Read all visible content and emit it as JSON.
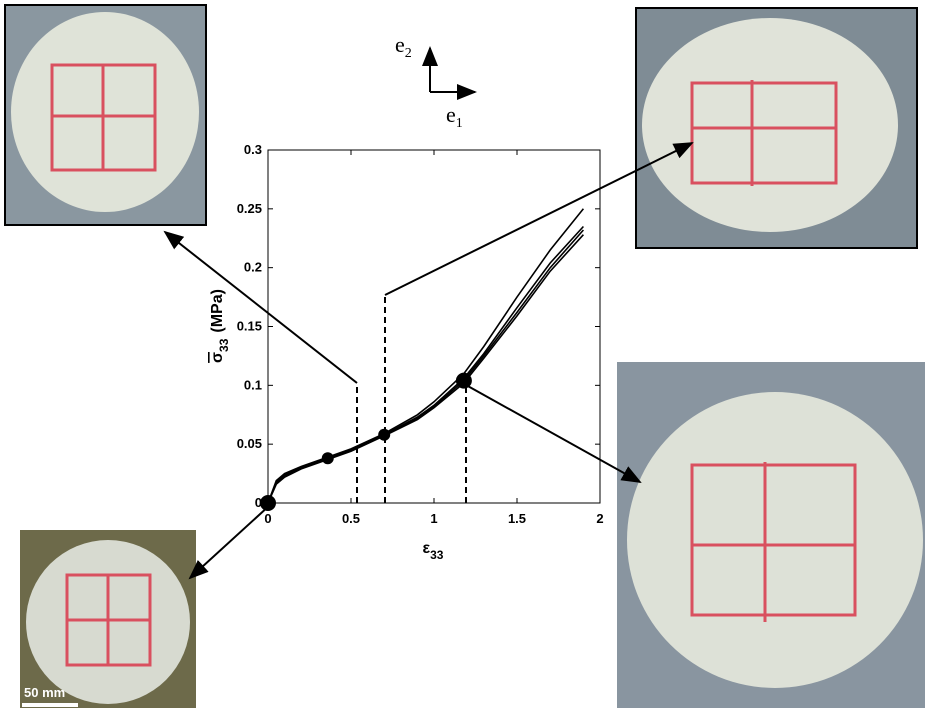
{
  "chart_data": {
    "type": "line",
    "x": [
      0,
      0.05,
      0.1,
      0.2,
      0.36,
      0.5,
      0.7,
      0.9,
      1.0,
      1.18,
      1.3,
      1.5,
      1.7,
      1.9
    ],
    "series": [
      {
        "color": "#000000",
        "values": [
          0,
          0.019,
          0.025,
          0.031,
          0.039,
          0.046,
          0.059,
          0.075,
          0.086,
          0.11,
          0.133,
          0.175,
          0.215,
          0.25
        ]
      },
      {
        "color": "#000000",
        "values": [
          0,
          0.018,
          0.024,
          0.03,
          0.038,
          0.045,
          0.058,
          0.073,
          0.083,
          0.106,
          0.127,
          0.166,
          0.204,
          0.235
        ]
      },
      {
        "color": "#000000",
        "values": [
          0,
          0.017,
          0.023,
          0.03,
          0.038,
          0.045,
          0.058,
          0.072,
          0.082,
          0.104,
          0.125,
          0.162,
          0.2,
          0.232
        ]
      },
      {
        "color": "#000000",
        "values": [
          0,
          0.016,
          0.022,
          0.029,
          0.037,
          0.044,
          0.057,
          0.071,
          0.081,
          0.102,
          0.123,
          0.159,
          0.197,
          0.228
        ]
      }
    ],
    "points": {
      "x": [
        0,
        0.36,
        0.7,
        1.18
      ],
      "y": [
        0,
        0.038,
        0.058,
        0.104
      ]
    },
    "xlim": [
      0,
      2
    ],
    "ylim": [
      0,
      0.3
    ],
    "xticks": [
      0,
      0.5,
      1,
      1.5,
      2
    ],
    "yticks": [
      0,
      0.05,
      0.1,
      0.15,
      0.2,
      0.25,
      0.3
    ],
    "x_label": {
      "symbol": "ε",
      "subscript": "33"
    },
    "y_label": {
      "symbol": "σ",
      "subscript": "33",
      "unit": "(MPa)"
    },
    "directions": [
      {
        "symbol": "e",
        "subscript": "2"
      },
      {
        "symbol": "e",
        "subscript": "1"
      }
    ],
    "scale_bar": "50 mm"
  }
}
